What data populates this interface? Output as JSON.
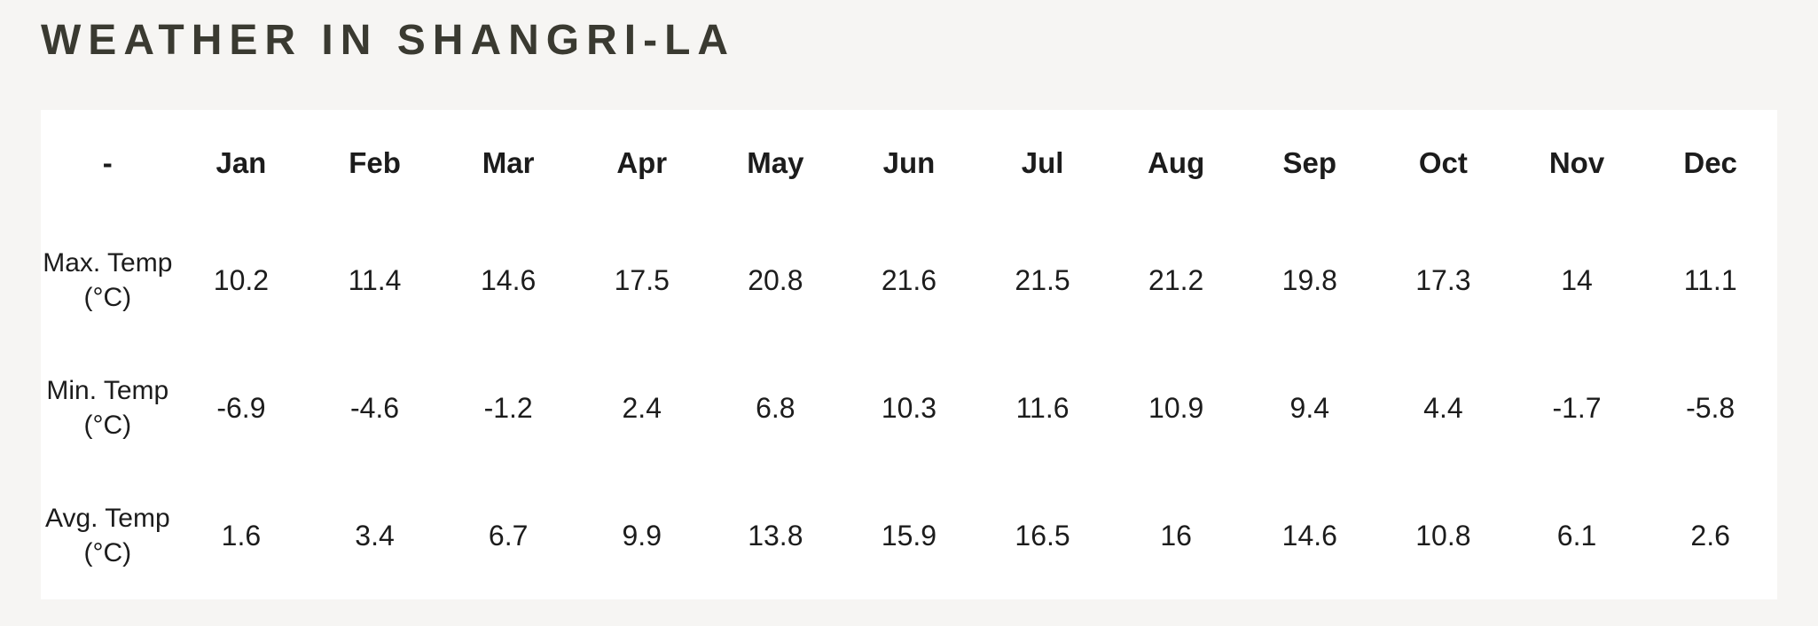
{
  "page": {
    "title": "WEATHER IN SHANGRI-LA"
  },
  "table": {
    "corner_label": "-",
    "months": [
      "Jan",
      "Feb",
      "Mar",
      "Apr",
      "May",
      "Jun",
      "Jul",
      "Aug",
      "Sep",
      "Oct",
      "Nov",
      "Dec"
    ],
    "rows": [
      {
        "label": "Max. Temp",
        "unit": "(°C)",
        "values": [
          "10.2",
          "11.4",
          "14.6",
          "17.5",
          "20.8",
          "21.6",
          "21.5",
          "21.2",
          "19.8",
          "17.3",
          "14",
          "11.1"
        ]
      },
      {
        "label": "Min. Temp",
        "unit": "(°C)",
        "values": [
          "-6.9",
          "-4.6",
          "-1.2",
          "2.4",
          "6.8",
          "10.3",
          "11.6",
          "10.9",
          "9.4",
          "4.4",
          "-1.7",
          "-5.8"
        ]
      },
      {
        "label": "Avg. Temp",
        "unit": "(°C)",
        "values": [
          "1.6",
          "3.4",
          "6.7",
          "9.9",
          "13.8",
          "15.9",
          "16.5",
          "16",
          "14.6",
          "10.8",
          "6.1",
          "2.6"
        ]
      }
    ]
  },
  "chart_data": {
    "type": "table",
    "title": "Weather in Shangri-La",
    "columns": [
      "-",
      "Jan",
      "Feb",
      "Mar",
      "Apr",
      "May",
      "Jun",
      "Jul",
      "Aug",
      "Sep",
      "Oct",
      "Nov",
      "Dec"
    ],
    "rows": [
      {
        "label": "Max. Temp (°C)",
        "values": [
          10.2,
          11.4,
          14.6,
          17.5,
          20.8,
          21.6,
          21.5,
          21.2,
          19.8,
          17.3,
          14,
          11.1
        ]
      },
      {
        "label": "Min. Temp (°C)",
        "values": [
          -6.9,
          -4.6,
          -1.2,
          2.4,
          6.8,
          10.3,
          11.6,
          10.9,
          9.4,
          4.4,
          -1.7,
          -5.8
        ]
      },
      {
        "label": "Avg. Temp (°C)",
        "values": [
          1.6,
          3.4,
          6.7,
          9.9,
          13.8,
          15.9,
          16.5,
          16,
          14.6,
          10.8,
          6.1,
          2.6
        ]
      }
    ]
  },
  "colors": {
    "page_background": "#f6f5f3",
    "card_background": "#ffffff",
    "title_text": "#3a3a31",
    "table_text": "#1c1c1c"
  }
}
